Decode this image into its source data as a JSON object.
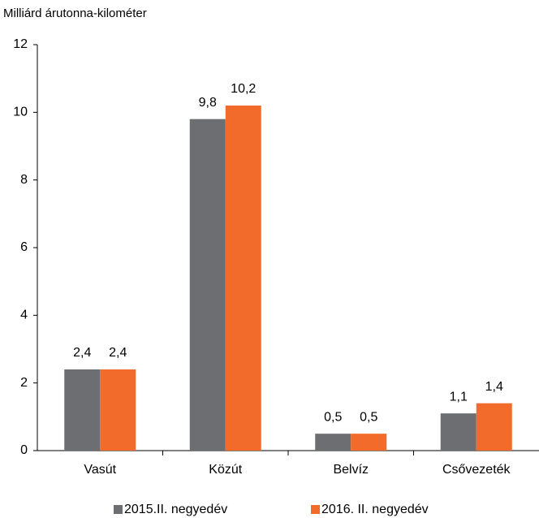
{
  "chart_data": {
    "type": "bar",
    "y_axis_label": "Milliárd árutonna-kilométer",
    "categories": [
      "Vasút",
      "Közút",
      "Belvíz",
      "Csővezeték"
    ],
    "series": [
      {
        "name": "2015.II. negyedév",
        "color": "#6d6e71",
        "values": [
          2.4,
          9.8,
          0.5,
          1.1
        ],
        "value_labels": [
          "2,4",
          "9,8",
          "0,5",
          "1,1"
        ]
      },
      {
        "name": "2016. II. negyedév",
        "color": "#f26b2b",
        "values": [
          2.4,
          10.2,
          0.5,
          1.4
        ],
        "value_labels": [
          "2,4",
          "10,2",
          "0,5",
          "1,4"
        ]
      }
    ],
    "ylim": [
      0,
      12
    ],
    "yticks": [
      0,
      2,
      4,
      6,
      8,
      10,
      12
    ],
    "grid": false,
    "legend": "bottom"
  }
}
